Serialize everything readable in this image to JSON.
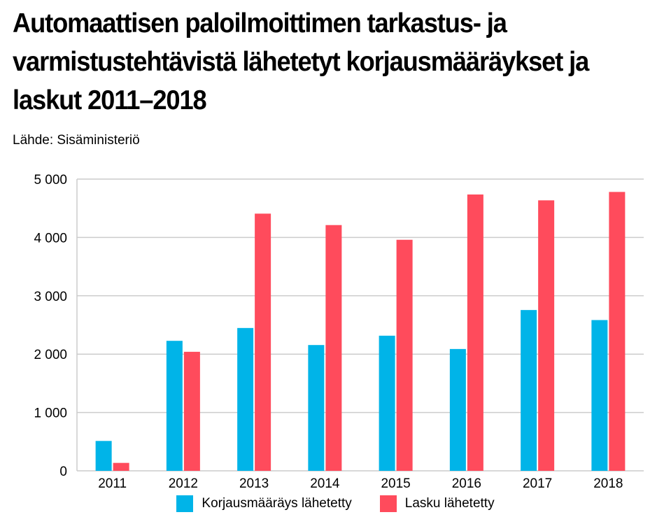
{
  "title": "Automaattisen paloilmoittimen tarkastus- ja varmistustehtävistä lähetetyt korjausmääräykset ja laskut 2011–2018",
  "source": "Lähde: Sisäministeriö",
  "chart_data": {
    "type": "bar",
    "title": "Automaattisen paloilmoittimen tarkastus- ja varmistustehtävistä lähetetyt korjausmääräykset ja laskut 2011–2018",
    "categories": [
      "2011",
      "2012",
      "2013",
      "2014",
      "2015",
      "2016",
      "2017",
      "2018"
    ],
    "series": [
      {
        "name": "Korjausmääräys lähetetty",
        "color": "#00b4e8",
        "values": [
          512,
          2228,
          2448,
          2156,
          2316,
          2088,
          2756,
          2584
        ]
      },
      {
        "name": "Lasku lähetetty",
        "color": "#ff4b5c",
        "values": [
          136,
          2040,
          4408,
          4212,
          3960,
          4736,
          4636,
          4780
        ]
      }
    ],
    "yticks": [
      "0",
      "1 000",
      "2 000",
      "3 000",
      "4 000",
      "5 000"
    ],
    "ylim": [
      0,
      5000
    ],
    "xlabel": "",
    "ylabel": "",
    "grid": true,
    "legend_position": "bottom"
  }
}
